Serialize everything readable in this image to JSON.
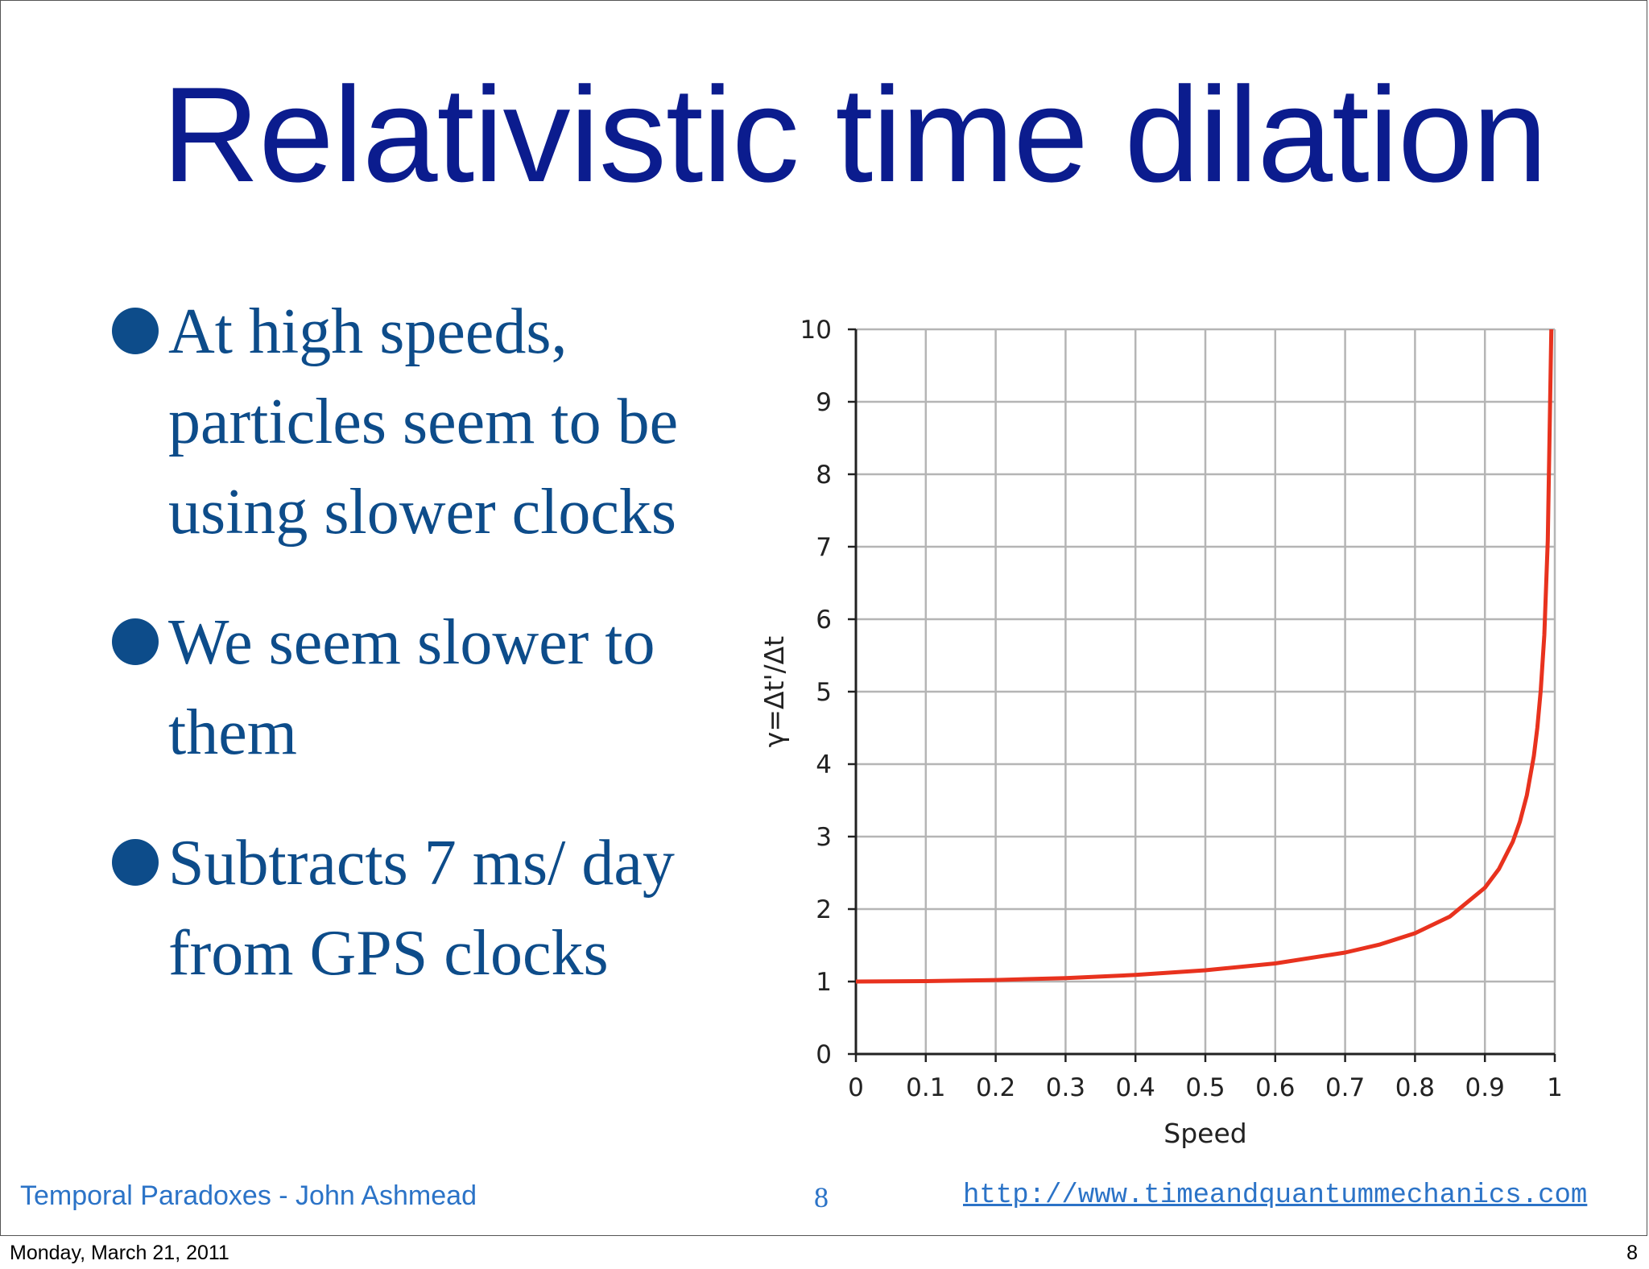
{
  "slide": {
    "title": "Relativistic time dilation",
    "bullets": [
      {
        "text": "At high speeds, particles seem to be using slower clocks"
      },
      {
        "text": "We seem slower to them"
      },
      {
        "text": "Subtracts 7 ms/ day from GPS clocks"
      }
    ],
    "footer": {
      "left": "Temporal Paradoxes - John Ashmead",
      "page_number": "8",
      "url": "http://www.timeandquantummechanics.com"
    }
  },
  "status_bar": {
    "date": "Monday, March 21, 2011",
    "page": "8"
  },
  "chart_data": {
    "type": "line",
    "xlabel": "Speed",
    "ylabel": "γ=Δt'/Δt",
    "xlim": [
      0,
      1
    ],
    "ylim": [
      0,
      10
    ],
    "xticks": [
      "0",
      "0.1",
      "0.2",
      "0.3",
      "0.4",
      "0.5",
      "0.6",
      "0.7",
      "0.8",
      "0.9",
      "1"
    ],
    "yticks": [
      "0",
      "1",
      "2",
      "3",
      "4",
      "5",
      "6",
      "7",
      "8",
      "9",
      "10"
    ],
    "grid": true,
    "series": [
      {
        "color": "#e8321e",
        "x": [
          0,
          0.1,
          0.2,
          0.3,
          0.4,
          0.5,
          0.6,
          0.7,
          0.75,
          0.8,
          0.85,
          0.9,
          0.92,
          0.94,
          0.95,
          0.96,
          0.97,
          0.975,
          0.98,
          0.985,
          0.99,
          0.995
        ],
        "y": [
          1.0,
          1.005,
          1.021,
          1.048,
          1.091,
          1.155,
          1.25,
          1.4,
          1.512,
          1.667,
          1.898,
          2.294,
          2.552,
          2.931,
          3.203,
          3.571,
          4.113,
          4.5,
          5.025,
          5.783,
          7.089,
          10.0
        ]
      }
    ]
  }
}
